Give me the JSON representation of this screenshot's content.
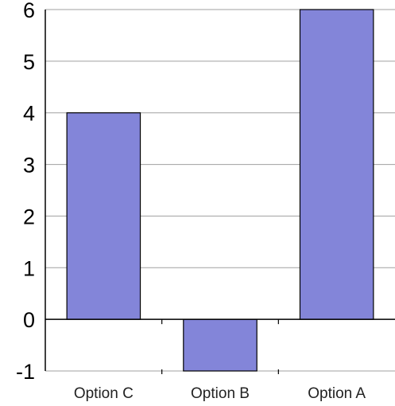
{
  "chart_data": {
    "type": "bar",
    "categories": [
      "Option C",
      "Option B",
      "Option A"
    ],
    "values": [
      4,
      -1,
      6
    ],
    "yticks": [
      -1,
      0,
      1,
      2,
      3,
      4,
      5,
      6
    ],
    "ylim": [
      -1,
      6
    ],
    "grid": true,
    "legend": "none",
    "bar_color": "#8385d9",
    "bar_stroke": "#000000",
    "grid_color": "#a0a0a0",
    "axis_color": "#000000"
  }
}
